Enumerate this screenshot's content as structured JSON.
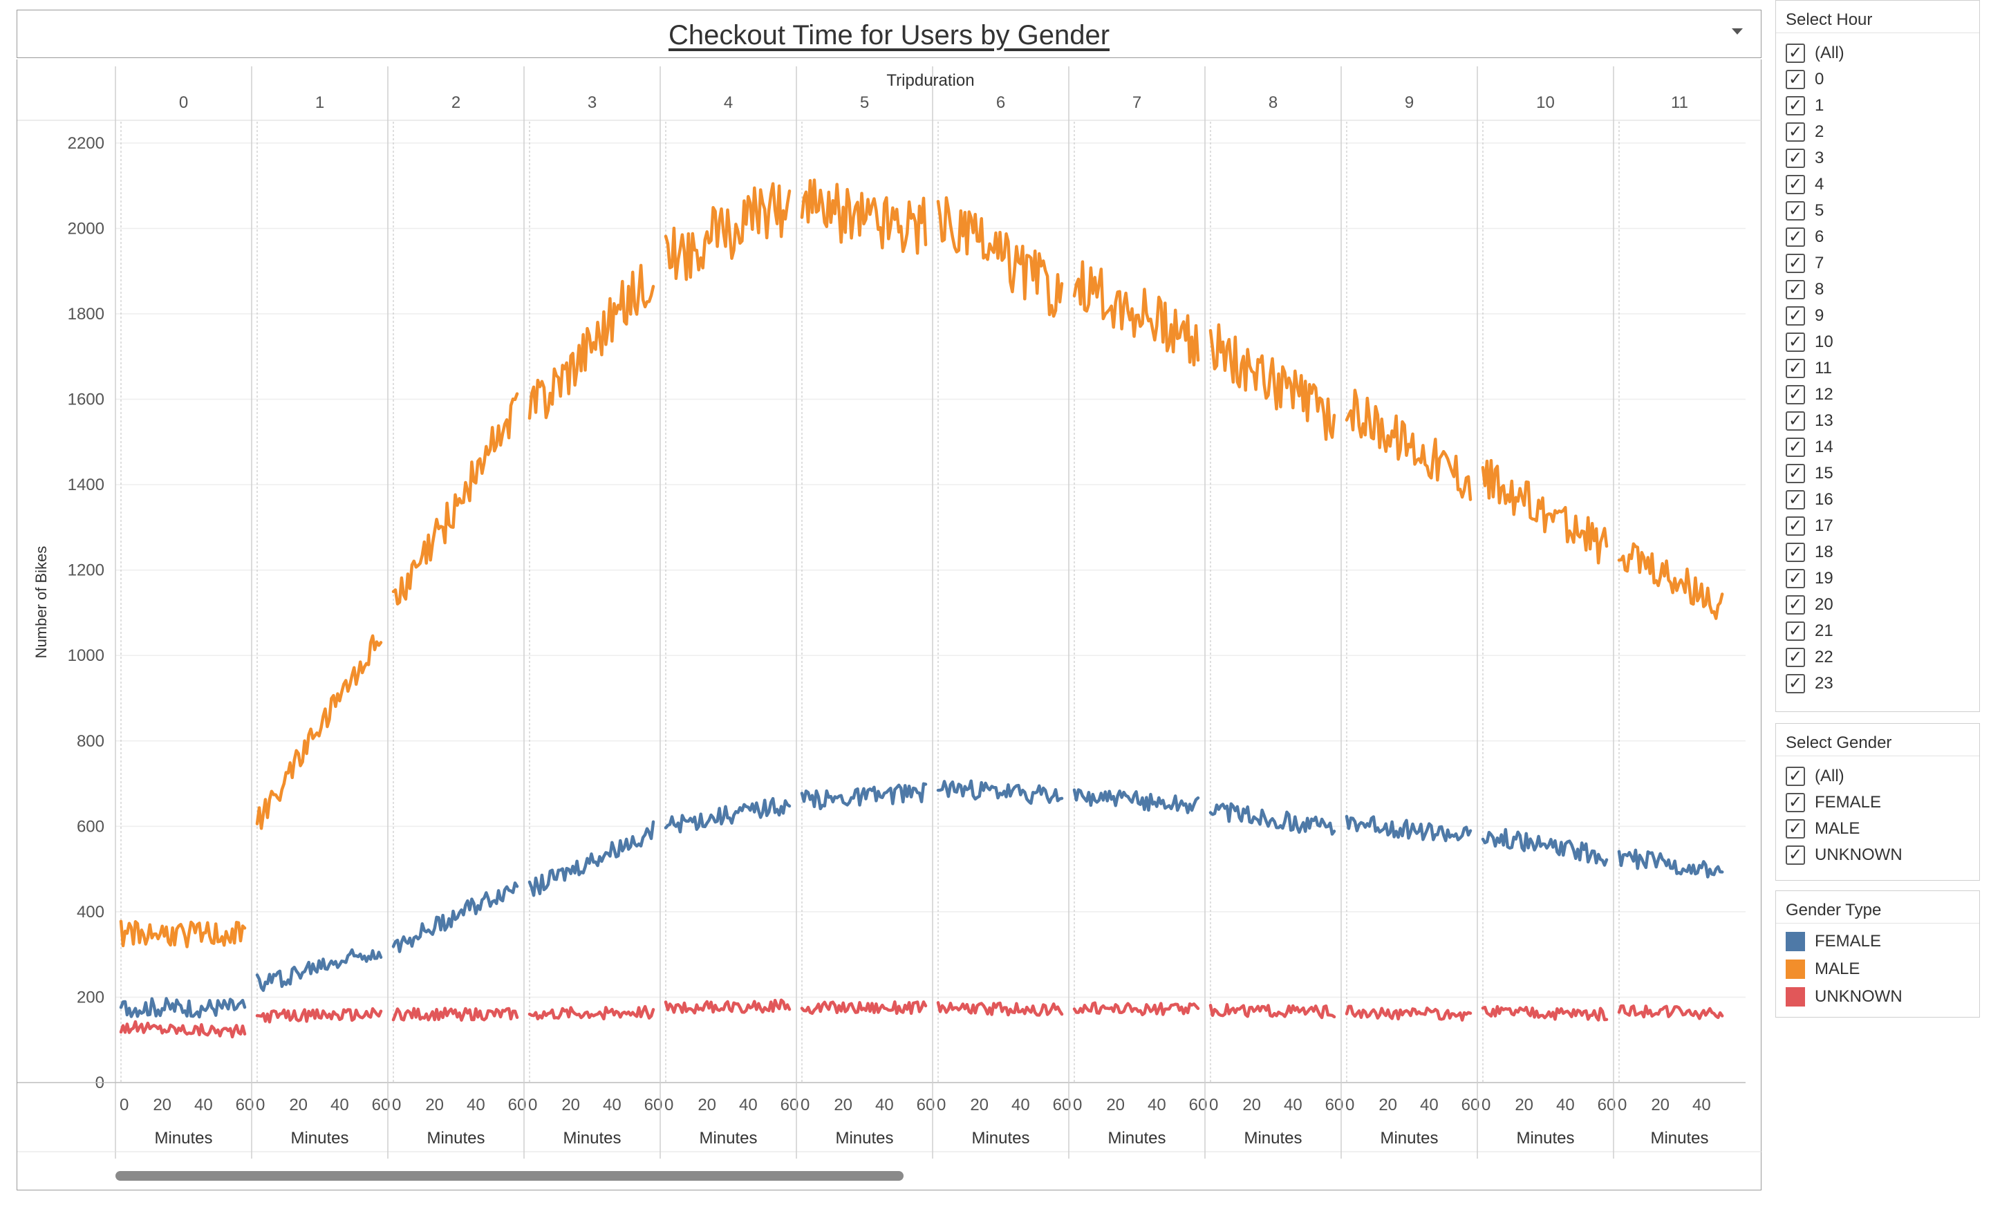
{
  "dashboard": {
    "title": "Checkout Time for Users by Gender"
  },
  "filters": {
    "hour": {
      "title": "Select Hour",
      "options": [
        "(All)",
        "0",
        "1",
        "2",
        "3",
        "4",
        "5",
        "6",
        "7",
        "8",
        "9",
        "10",
        "11",
        "12",
        "13",
        "14",
        "15",
        "16",
        "17",
        "18",
        "19",
        "20",
        "21",
        "22",
        "23"
      ],
      "checked": true
    },
    "gender": {
      "title": "Select Gender",
      "options": [
        "(All)",
        "FEMALE",
        "MALE",
        "UNKNOWN"
      ],
      "checked": true
    }
  },
  "legend": {
    "title": "Gender Type",
    "items": [
      {
        "label": "FEMALE",
        "color": "#4e79a7"
      },
      {
        "label": "MALE",
        "color": "#f28e2b"
      },
      {
        "label": "UNKNOWN",
        "color": "#e15759"
      }
    ]
  },
  "chart_data": {
    "type": "line",
    "title": "Checkout Time for Users by Gender",
    "column_header": "Tripduration",
    "ylabel": "Number of Bikes",
    "xlabel": "Minutes",
    "ylim": [
      0,
      2250
    ],
    "yticks": [
      0,
      200,
      400,
      600,
      800,
      1000,
      1200,
      1400,
      1600,
      1800,
      2000,
      2200
    ],
    "panel_xlim": [
      0,
      60
    ],
    "xticks": [
      0,
      20,
      40,
      60
    ],
    "last_panel_xticks": [
      0,
      20,
      40
    ],
    "grid": "horizontal",
    "panels": [
      {
        "label": "0",
        "series": [
          {
            "name": "MALE",
            "start": 350,
            "end": 345
          },
          {
            "name": "FEMALE",
            "start": 175,
            "end": 175
          },
          {
            "name": "UNKNOWN",
            "start": 130,
            "end": 120
          }
        ]
      },
      {
        "label": "1",
        "series": [
          {
            "name": "MALE",
            "start": 610,
            "end": 1045
          },
          {
            "name": "FEMALE",
            "start": 230,
            "end": 315
          },
          {
            "name": "UNKNOWN",
            "start": 155,
            "end": 160
          }
        ]
      },
      {
        "label": "2",
        "series": [
          {
            "name": "MALE",
            "start": 1110,
            "end": 1590
          },
          {
            "name": "FEMALE",
            "start": 320,
            "end": 460
          },
          {
            "name": "UNKNOWN",
            "start": 160,
            "end": 160
          }
        ]
      },
      {
        "label": "3",
        "series": [
          {
            "name": "MALE",
            "start": 1570,
            "end": 1900
          },
          {
            "name": "FEMALE",
            "start": 450,
            "end": 590
          },
          {
            "name": "UNKNOWN",
            "start": 160,
            "end": 165
          }
        ]
      },
      {
        "label": "4",
        "series": [
          {
            "name": "MALE",
            "start": 1930,
            "end": 2060
          },
          {
            "name": "FEMALE",
            "start": 600,
            "end": 650
          },
          {
            "name": "UNKNOWN",
            "start": 175,
            "end": 180
          }
        ]
      },
      {
        "label": "5",
        "series": [
          {
            "name": "MALE",
            "start": 2050,
            "end": 2010
          },
          {
            "name": "FEMALE",
            "start": 660,
            "end": 680
          },
          {
            "name": "UNKNOWN",
            "start": 175,
            "end": 175
          }
        ]
      },
      {
        "label": "6",
        "series": [
          {
            "name": "MALE",
            "start": 2020,
            "end": 1850
          },
          {
            "name": "FEMALE",
            "start": 690,
            "end": 670
          },
          {
            "name": "UNKNOWN",
            "start": 175,
            "end": 170
          }
        ]
      },
      {
        "label": "7",
        "series": [
          {
            "name": "MALE",
            "start": 1870,
            "end": 1740
          },
          {
            "name": "FEMALE",
            "start": 670,
            "end": 650
          },
          {
            "name": "UNKNOWN",
            "start": 175,
            "end": 170
          }
        ]
      },
      {
        "label": "8",
        "series": [
          {
            "name": "MALE",
            "start": 1730,
            "end": 1550
          },
          {
            "name": "FEMALE",
            "start": 640,
            "end": 595
          },
          {
            "name": "UNKNOWN",
            "start": 170,
            "end": 165
          }
        ]
      },
      {
        "label": "9",
        "series": [
          {
            "name": "MALE",
            "start": 1580,
            "end": 1410
          },
          {
            "name": "FEMALE",
            "start": 610,
            "end": 575
          },
          {
            "name": "UNKNOWN",
            "start": 165,
            "end": 160
          }
        ]
      },
      {
        "label": "10",
        "series": [
          {
            "name": "MALE",
            "start": 1420,
            "end": 1250
          },
          {
            "name": "FEMALE",
            "start": 580,
            "end": 530
          },
          {
            "name": "UNKNOWN",
            "start": 165,
            "end": 160
          }
        ]
      },
      {
        "label": "11",
        "series": [
          {
            "name": "MALE",
            "start": 1250,
            "end": 1120,
            "x_end": 50
          },
          {
            "name": "FEMALE",
            "start": 530,
            "end": 490,
            "x_end": 50
          },
          {
            "name": "UNKNOWN",
            "start": 170,
            "end": 160,
            "x_end": 50
          }
        ]
      }
    ]
  }
}
